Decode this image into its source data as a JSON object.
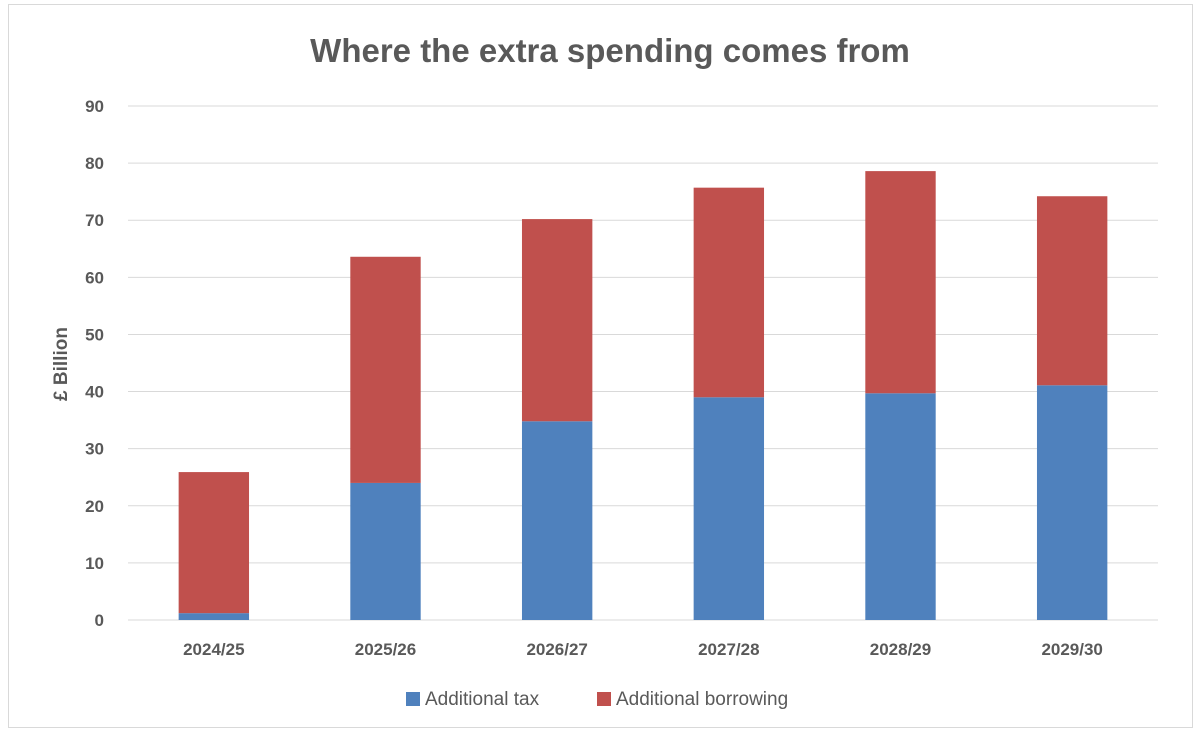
{
  "chart_data": {
    "type": "bar",
    "stacked": true,
    "title": "Where the extra spending comes from",
    "xlabel": "",
    "ylabel": "£ Billion",
    "ylim": [
      0,
      90
    ],
    "yticks": [
      0,
      10,
      20,
      30,
      40,
      50,
      60,
      70,
      80,
      90
    ],
    "grid": true,
    "legend_position": "bottom",
    "categories": [
      "2024/25",
      "2025/26",
      "2026/27",
      "2027/28",
      "2028/29",
      "2029/30"
    ],
    "series": [
      {
        "name": "Additional tax",
        "color": "#4f81bd",
        "values": [
          1.2,
          24.0,
          34.8,
          39.0,
          39.7,
          41.1
        ]
      },
      {
        "name": "Additional borrowing",
        "color": "#c0504d",
        "values": [
          24.7,
          39.6,
          35.4,
          36.7,
          38.9,
          33.1
        ]
      }
    ]
  }
}
